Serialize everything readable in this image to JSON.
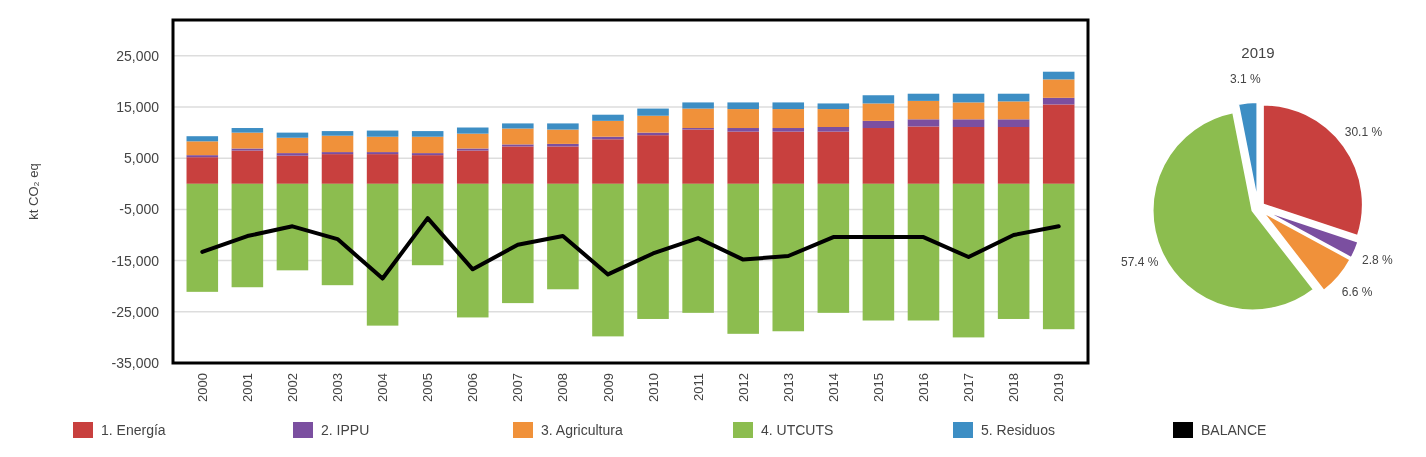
{
  "chart_data": [
    {
      "type": "bar",
      "stacked": true,
      "ylabel": "kt CO₂ eq",
      "categories": [
        "2000",
        "2001",
        "2002",
        "2003",
        "2004",
        "2005",
        "2006",
        "2007",
        "2008",
        "2009",
        "2010",
        "2011",
        "2012",
        "2013",
        "2014",
        "2015",
        "2016",
        "2017",
        "2018",
        "2019"
      ],
      "series": [
        {
          "name": "1. Energía",
          "color": "#c8403e",
          "values": [
            5200,
            6500,
            5500,
            5800,
            5800,
            5600,
            6500,
            7300,
            7300,
            8700,
            9500,
            10600,
            10200,
            10200,
            10200,
            10900,
            11200,
            11100,
            11100,
            15500
          ]
        },
        {
          "name": "2. IPPU",
          "color": "#7b4fa0",
          "values": [
            400,
            400,
            500,
            400,
            400,
            400,
            400,
            400,
            500,
            500,
            500,
            300,
            700,
            700,
            900,
            1400,
            1400,
            1500,
            1500,
            1300
          ]
        },
        {
          "name": "3. Agricultura",
          "color": "#f0913a",
          "values": [
            2700,
            3100,
            3000,
            3200,
            3000,
            3200,
            2900,
            3100,
            2800,
            3100,
            3300,
            3800,
            3700,
            3700,
            3500,
            3400,
            3600,
            3300,
            3500,
            3600
          ]
        },
        {
          "name": "4. UTCUTS",
          "color": "#8cbd4f",
          "values": [
            -21100,
            -20200,
            -16900,
            -19800,
            -27700,
            -15900,
            -26100,
            -23300,
            -20600,
            -29800,
            -26400,
            -25200,
            -29300,
            -28800,
            -25200,
            -26700,
            -26700,
            -30000,
            -26400,
            -28400
          ]
        },
        {
          "name": "5. Residuos",
          "color": "#3d8ec4",
          "values": [
            1000,
            900,
            1000,
            900,
            1200,
            1100,
            1200,
            1000,
            1200,
            1200,
            1400,
            1200,
            1300,
            1300,
            1100,
            1600,
            1400,
            1700,
            1500,
            1500
          ]
        },
        {
          "name": "BALANCE",
          "type": "line",
          "color": "#000000",
          "values": [
            -13300,
            -10200,
            -8300,
            -10800,
            -18500,
            -6700,
            -16700,
            -11900,
            -10200,
            -17700,
            -13600,
            -10600,
            -14800,
            -14100,
            -10400,
            -10400,
            -10400,
            -14300,
            -10000,
            -8300
          ]
        }
      ],
      "ylim": [
        -35000,
        32000
      ],
      "yticks": [
        {
          "value": -35000,
          "label": "-35,000"
        },
        {
          "value": -25000,
          "label": "-25,000"
        },
        {
          "value": -15000,
          "label": "-15,000"
        },
        {
          "value": -5000,
          "label": "-5,000"
        },
        {
          "value": 5000,
          "label": "5,000"
        },
        {
          "value": 15000,
          "label": "15,000"
        },
        {
          "value": 25000,
          "label": "25,000"
        }
      ],
      "grid": "y",
      "legend": "bottom",
      "marker": "none",
      "line_style": "solid"
    },
    {
      "type": "pie",
      "title": "2019",
      "categories": [
        null,
        null,
        null,
        null,
        null
      ],
      "values": [
        30.1,
        2.8,
        6.6,
        57.4,
        3.1
      ],
      "colors": [
        "#c8403e",
        "#7b4fa0",
        "#f0913a",
        "#8cbd4f",
        "#3d8ec4"
      ],
      "value_labels": [
        "30.1 %",
        "2.8 %",
        "6.6 %",
        "57.4 %",
        "3.1 %"
      ]
    }
  ]
}
